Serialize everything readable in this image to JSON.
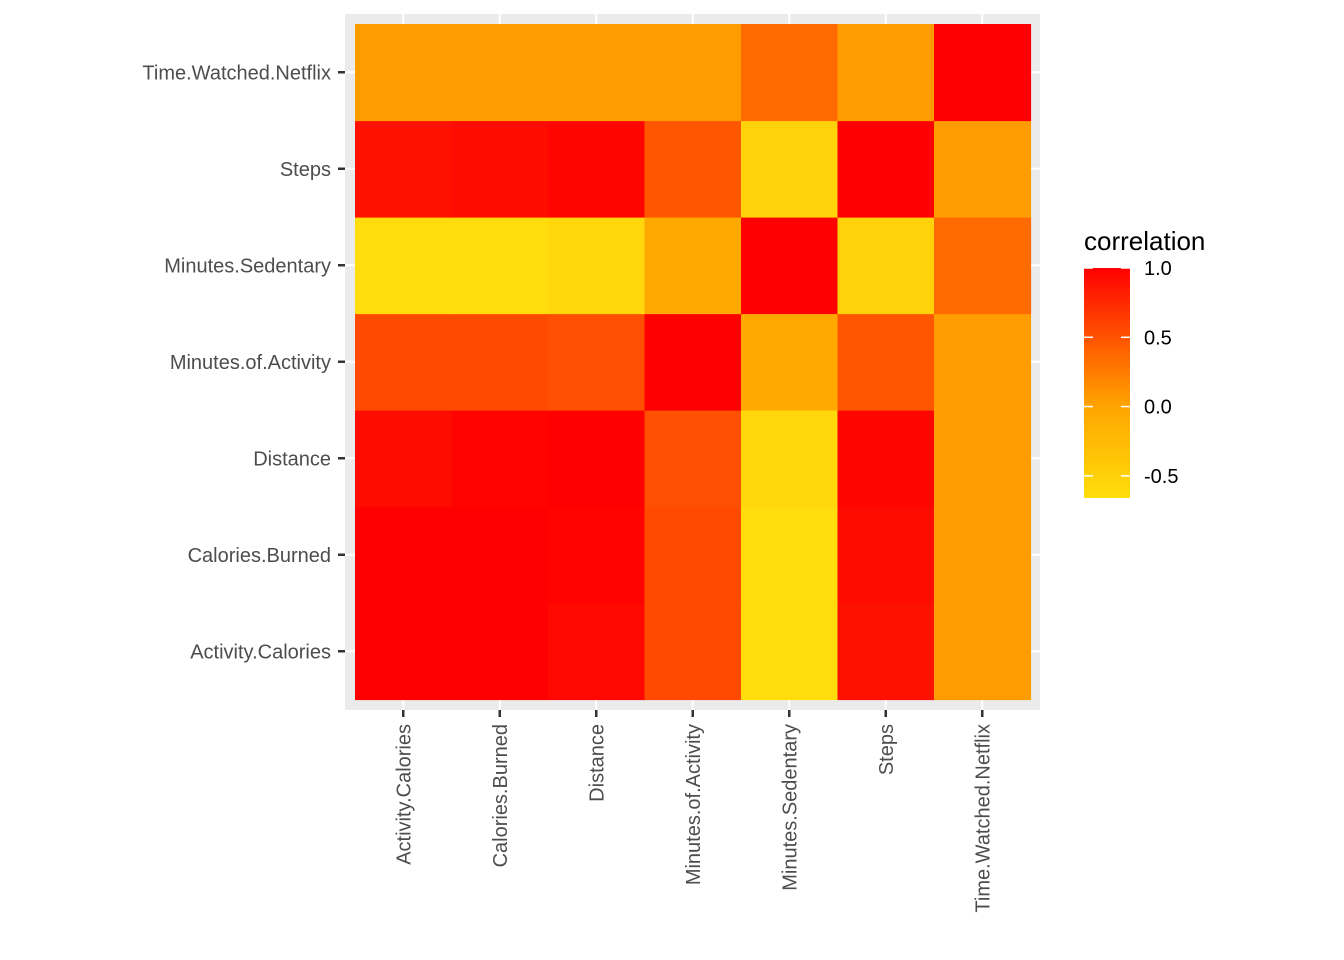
{
  "chart_data": {
    "type": "heatmap",
    "x_categories": [
      "Activity.Calories",
      "Calories.Burned",
      "Distance",
      "Minutes.of.Activity",
      "Minutes.Sedentary",
      "Steps",
      "Time.Watched.Netflix"
    ],
    "y_categories": [
      "Activity.Calories",
      "Calories.Burned",
      "Distance",
      "Minutes.of.Activity",
      "Minutes.Sedentary",
      "Steps",
      "Time.Watched.Netflix"
    ],
    "values": [
      [
        1.0,
        1.0,
        0.95,
        0.55,
        -0.65,
        0.9,
        0.05
      ],
      [
        1.0,
        1.0,
        0.98,
        0.55,
        -0.64,
        0.93,
        0.05
      ],
      [
        0.93,
        0.98,
        1.0,
        0.52,
        -0.58,
        0.97,
        0.05
      ],
      [
        0.55,
        0.55,
        0.52,
        1.0,
        -0.05,
        0.48,
        0.05
      ],
      [
        -0.65,
        -0.64,
        -0.58,
        -0.05,
        1.0,
        -0.52,
        0.35
      ],
      [
        0.9,
        0.93,
        0.97,
        0.48,
        -0.52,
        1.0,
        0.05
      ],
      [
        0.05,
        0.05,
        0.05,
        0.05,
        0.35,
        0.05,
        1.0
      ]
    ],
    "legend": {
      "title": "correlation",
      "breaks": [
        1.0,
        0.5,
        0.0,
        -0.5
      ],
      "break_labels": [
        "1.0",
        "0.5",
        "0.0",
        "-0.5"
      ],
      "range": [
        -0.66,
        1.0
      ],
      "position": "right"
    },
    "color_low": "#FFDE0C",
    "color_mid": "#FFA500",
    "color_high": "#FF0000",
    "panel_background": "#EBEBEB",
    "grid": true,
    "x_tick_rotation": "vertical"
  }
}
